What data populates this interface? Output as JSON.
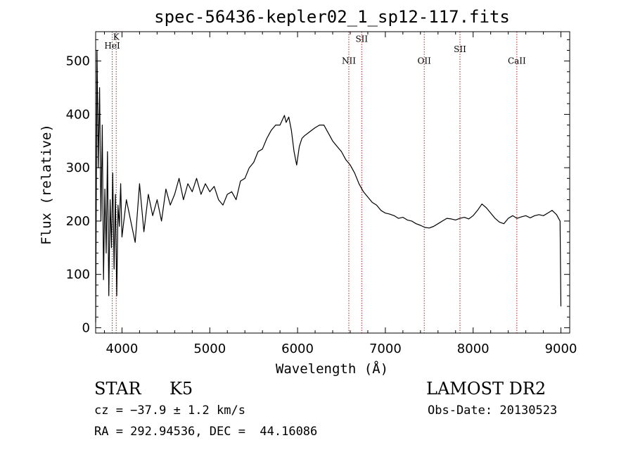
{
  "chart_data": {
    "type": "line",
    "title": "spec-56436-kepler02_1_sp12-117.fits",
    "xlabel": "Wavelength (Å)",
    "ylabel": "Flux (relative)",
    "xlim": [
      3700,
      9100
    ],
    "ylim": [
      -10,
      555
    ],
    "x_ticks": [
      4000,
      5000,
      6000,
      7000,
      8000,
      9000
    ],
    "y_ticks": [
      0,
      100,
      200,
      300,
      400,
      500
    ],
    "grid": false,
    "line_color": "#000000",
    "marker_color": "#b22222",
    "series": [
      {
        "x": [
          3700,
          3715,
          3730,
          3745,
          3760,
          3775,
          3790,
          3805,
          3820,
          3835,
          3850,
          3865,
          3880,
          3895,
          3910,
          3925,
          3940,
          3955,
          3970,
          3985,
          4000,
          4050,
          4100,
          4150,
          4200,
          4250,
          4300,
          4350,
          4400,
          4450,
          4500,
          4550,
          4600,
          4650,
          4700,
          4750,
          4800,
          4850,
          4900,
          4950,
          5000,
          5050,
          5100,
          5150,
          5200,
          5250,
          5300,
          5350,
          5400,
          5450,
          5500,
          5550,
          5600,
          5650,
          5700,
          5750,
          5800,
          5850,
          5870,
          5900,
          5930,
          5960,
          5990,
          6020,
          6050,
          6080,
          6120,
          6160,
          6200,
          6250,
          6300,
          6350,
          6400,
          6450,
          6500,
          6550,
          6600,
          6650,
          6700,
          6750,
          6800,
          6850,
          6900,
          6950,
          7000,
          7050,
          7100,
          7150,
          7200,
          7250,
          7300,
          7350,
          7400,
          7450,
          7500,
          7550,
          7600,
          7650,
          7700,
          7750,
          7800,
          7850,
          7900,
          7950,
          8000,
          8050,
          8100,
          8150,
          8200,
          8250,
          8300,
          8350,
          8400,
          8450,
          8500,
          8550,
          8600,
          8650,
          8700,
          8750,
          8800,
          8850,
          8900,
          8950,
          8990,
          9000
        ],
        "y": [
          10,
          520,
          300,
          450,
          200,
          380,
          90,
          260,
          140,
          330,
          60,
          240,
          150,
          290,
          110,
          250,
          60,
          230,
          190,
          270,
          170,
          240,
          200,
          160,
          270,
          180,
          250,
          210,
          240,
          200,
          260,
          230,
          250,
          280,
          240,
          270,
          255,
          280,
          250,
          270,
          255,
          265,
          240,
          230,
          250,
          255,
          240,
          275,
          280,
          300,
          310,
          330,
          335,
          355,
          370,
          380,
          380,
          398,
          385,
          395,
          370,
          330,
          305,
          340,
          355,
          360,
          365,
          370,
          375,
          380,
          380,
          365,
          350,
          340,
          330,
          315,
          305,
          290,
          270,
          255,
          245,
          235,
          230,
          220,
          215,
          213,
          210,
          205,
          207,
          202,
          200,
          195,
          192,
          188,
          187,
          190,
          195,
          200,
          205,
          204,
          202,
          205,
          207,
          204,
          210,
          220,
          232,
          225,
          215,
          205,
          198,
          195,
          205,
          210,
          205,
          208,
          210,
          206,
          210,
          212,
          210,
          215,
          220,
          212,
          200,
          40
        ]
      }
    ],
    "lines": [
      {
        "label": "K",
        "x": 3934,
        "label_y": 540
      },
      {
        "label": "HeI",
        "x": 3889,
        "label_y": 523
      },
      {
        "label": "NII",
        "x": 6584,
        "label_y": 495
      },
      {
        "label": "SII",
        "x": 6731,
        "label_y": 536
      },
      {
        "label": "OII",
        "x": 7443,
        "label_y": 495
      },
      {
        "label": "SII",
        "x": 7850,
        "label_y": 517
      },
      {
        "label": "CaII",
        "x": 8498,
        "label_y": 495
      }
    ]
  },
  "footer": {
    "object_class": "STAR",
    "subclass": "K5",
    "survey": "LAMOST DR2",
    "cz": "cz = −37.9 ± 1.2 km/s",
    "obs_date": "Obs-Date: 20130523",
    "coords": "RA = 292.94536, DEC =  44.16086"
  }
}
